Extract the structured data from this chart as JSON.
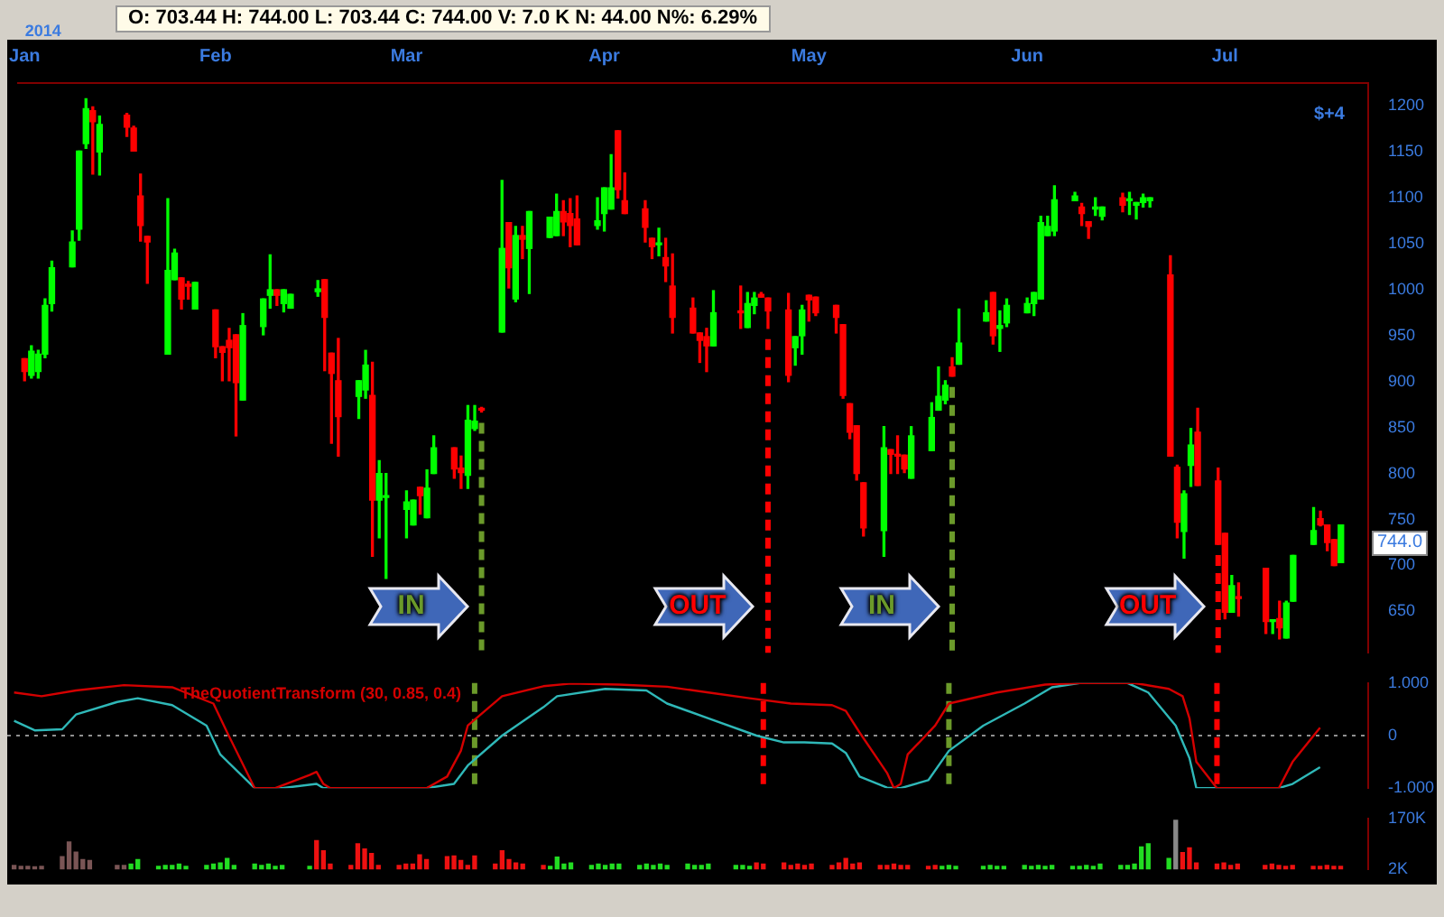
{
  "chart_data": [
    {
      "type": "candlestick",
      "title": "O: 703.44  H: 744.00  L: 703.44  C: 744.00  V: 7.0 K  N: 44.00  N%: 6.29%",
      "x": [
        "2014-01-06",
        "2014-01-07",
        "2014-01-08",
        "2014-01-09",
        "2014-01-10",
        "2014-01-13",
        "2014-01-14",
        "2014-01-15",
        "2014-01-16",
        "2014-01-17",
        "2014-01-21",
        "2014-01-22",
        "2014-01-23",
        "2014-01-24",
        "2014-01-27",
        "2014-01-28",
        "2014-01-29",
        "2014-01-30",
        "2014-01-31",
        "2014-02-03",
        "2014-02-04",
        "2014-02-05",
        "2014-02-06",
        "2014-02-07",
        "2014-02-10",
        "2014-02-11",
        "2014-02-12",
        "2014-02-13",
        "2014-02-14",
        "2014-02-18",
        "2014-02-19",
        "2014-02-20",
        "2014-02-21",
        "2014-02-24",
        "2014-02-25",
        "2014-02-26",
        "2014-02-27",
        "2014-02-28",
        "2014-03-03",
        "2014-03-04",
        "2014-03-05",
        "2014-03-06",
        "2014-03-07",
        "2014-03-10",
        "2014-03-11",
        "2014-03-12",
        "2014-03-13",
        "2014-03-14",
        "2014-03-17",
        "2014-03-18",
        "2014-03-19",
        "2014-03-20",
        "2014-03-21",
        "2014-03-24",
        "2014-03-25",
        "2014-03-26",
        "2014-03-27",
        "2014-03-28",
        "2014-03-31",
        "2014-04-01",
        "2014-04-02",
        "2014-04-03",
        "2014-04-04",
        "2014-04-07",
        "2014-04-08",
        "2014-04-09",
        "2014-04-10",
        "2014-04-11",
        "2014-04-14",
        "2014-04-15",
        "2014-04-16",
        "2014-04-17",
        "2014-04-21",
        "2014-04-22",
        "2014-04-23",
        "2014-04-24",
        "2014-04-25",
        "2014-04-28",
        "2014-04-29",
        "2014-04-30",
        "2014-05-01",
        "2014-05-02",
        "2014-05-05",
        "2014-05-06",
        "2014-05-07",
        "2014-05-08",
        "2014-05-09",
        "2014-05-12",
        "2014-05-13",
        "2014-05-14",
        "2014-05-15",
        "2014-05-16",
        "2014-05-19",
        "2014-05-20",
        "2014-05-21",
        "2014-05-22",
        "2014-05-23",
        "2014-05-27",
        "2014-05-28",
        "2014-05-29",
        "2014-05-30",
        "2014-06-02",
        "2014-06-03",
        "2014-06-04",
        "2014-06-05",
        "2014-06-06",
        "2014-06-09",
        "2014-06-10",
        "2014-06-11",
        "2014-06-12",
        "2014-06-13",
        "2014-06-16",
        "2014-06-17",
        "2014-06-18",
        "2014-06-19",
        "2014-06-20",
        "2014-06-23",
        "2014-06-24",
        "2014-06-25",
        "2014-06-26",
        "2014-06-27",
        "2014-06-30",
        "2014-07-01",
        "2014-07-02",
        "2014-07-03",
        "2014-07-07",
        "2014-07-08",
        "2014-07-09",
        "2014-07-10",
        "2014-07-11",
        "2014-07-14",
        "2014-07-15",
        "2014-07-16",
        "2014-07-17",
        "2014-07-18"
      ],
      "ohlc": [
        [
          925,
          925,
          901,
          911
        ],
        [
          907,
          939,
          904,
          933
        ],
        [
          911,
          934,
          904,
          930
        ],
        [
          930,
          990,
          926,
          983
        ],
        [
          985,
          1031,
          977,
          1024
        ],
        [
          1025,
          1064,
          1025,
          1052
        ],
        [
          1066,
          1151,
          1054,
          1151
        ],
        [
          1159,
          1208,
          1154,
          1197
        ],
        [
          1195,
          1199,
          1126,
          1183
        ],
        [
          1150,
          1189,
          1125,
          1180
        ],
        [
          1190,
          1192,
          1167,
          1177
        ],
        [
          1176,
          1178,
          1151,
          1151
        ],
        [
          1102,
          1126,
          1053,
          1070
        ],
        [
          1058,
          1058,
          1007,
          1052
        ],
        [
          930,
          1099,
          930,
          1021
        ],
        [
          1011,
          1044,
          1011,
          1040
        ],
        [
          1013,
          1013,
          979,
          990
        ],
        [
          1006,
          1009,
          990,
          1004
        ],
        [
          979,
          1008,
          979,
          1008
        ],
        [
          978,
          978,
          926,
          938
        ],
        [
          938,
          938,
          901,
          932
        ],
        [
          945,
          958,
          901,
          937
        ],
        [
          951,
          951,
          841,
          899
        ],
        [
          880,
          974,
          880,
          961
        ],
        [
          960,
          990,
          951,
          990
        ],
        [
          994,
          1038,
          980,
          1000
        ],
        [
          1000,
          1000,
          983,
          994
        ],
        [
          985,
          1000,
          976,
          1000
        ],
        [
          980,
          995,
          980,
          995
        ],
        [
          998,
          1010,
          993,
          1001
        ],
        [
          1011,
          1011,
          912,
          970
        ],
        [
          931,
          931,
          833,
          909
        ],
        [
          901,
          947,
          819,
          862
        ],
        [
          884,
          901,
          860,
          901
        ],
        [
          891,
          934,
          882,
          918
        ],
        [
          885,
          921,
          710,
          771
        ],
        [
          771,
          814,
          730,
          800
        ],
        [
          774,
          800,
          686,
          775
        ],
        [
          761,
          781,
          730,
          769
        ],
        [
          744,
          771,
          744,
          771
        ],
        [
          785,
          785,
          756,
          776
        ],
        [
          752,
          804,
          752,
          784
        ],
        [
          800,
          841,
          800,
          828
        ],
        [
          828,
          828,
          795,
          805
        ],
        [
          806,
          819,
          784,
          801
        ],
        [
          798,
          874,
          784,
          858
        ],
        [
          849,
          874,
          847,
          857
        ],
        [
          870,
          872,
          867,
          869
        ],
        [
          954,
          1119,
          954,
          1045
        ],
        [
          1073,
          1073,
          1002,
          1024
        ],
        [
          990,
          1069,
          987,
          1059
        ],
        [
          1059,
          1069,
          1034,
          1055
        ],
        [
          1045,
          1085,
          996,
          1085
        ],
        [
          1057,
          1079,
          1057,
          1079
        ],
        [
          1059,
          1104,
          1059,
          1085
        ],
        [
          1085,
          1097,
          1059,
          1074
        ],
        [
          1083,
          1099,
          1047,
          1070
        ],
        [
          1077,
          1102,
          1049,
          1049
        ],
        [
          1070,
          1100,
          1066,
          1075
        ],
        [
          1083,
          1111,
          1064,
          1111
        ],
        [
          1088,
          1147,
          1088,
          1111
        ],
        [
          1173,
          1173,
          1100,
          1109
        ],
        [
          1097,
          1127,
          1083,
          1083
        ],
        [
          1088,
          1097,
          1052,
          1068
        ],
        [
          1056,
          1056,
          1034,
          1047
        ],
        [
          1049,
          1067,
          1037,
          1050
        ],
        [
          1035,
          1056,
          1009,
          1026
        ],
        [
          1004,
          1039,
          953,
          970
        ],
        [
          980,
          991,
          953,
          953
        ],
        [
          953,
          953,
          921,
          945
        ],
        [
          949,
          958,
          911,
          939
        ],
        [
          939,
          999,
          939,
          975
        ],
        [
          976,
          1004,
          958,
          975
        ],
        [
          959,
          997,
          959,
          985
        ],
        [
          983,
          997,
          974,
          991
        ],
        [
          995,
          997,
          992,
          992
        ],
        [
          991,
          991,
          958,
          977
        ],
        [
          978,
          996,
          900,
          907
        ],
        [
          937,
          949,
          918,
          949
        ],
        [
          950,
          983,
          930,
          978
        ],
        [
          994,
          994,
          966,
          989
        ],
        [
          992,
          992,
          972,
          975
        ],
        [
          983,
          983,
          953,
          970
        ],
        [
          962,
          962,
          882,
          885
        ],
        [
          876,
          876,
          838,
          845
        ],
        [
          852,
          852,
          793,
          800
        ],
        [
          790,
          790,
          732,
          741
        ],
        [
          738,
          851,
          710,
          828
        ],
        [
          826,
          826,
          800,
          821
        ],
        [
          820,
          841,
          800,
          819
        ],
        [
          820,
          820,
          801,
          805
        ],
        [
          795,
          851,
          795,
          841
        ],
        [
          825,
          877,
          825,
          861
        ],
        [
          869,
          916,
          869,
          884
        ],
        [
          880,
          901,
          876,
          896
        ],
        [
          916,
          926,
          906,
          906
        ],
        [
          919,
          979,
          919,
          942
        ],
        [
          966,
          988,
          966,
          975
        ],
        [
          997,
          997,
          941,
          950
        ],
        [
          958,
          977,
          933,
          961
        ],
        [
          964,
          990,
          960,
          983
        ],
        [
          975,
          991,
          975,
          985
        ],
        [
          985,
          997,
          972,
          997
        ],
        [
          990,
          1080,
          990,
          1073
        ],
        [
          1059,
          1080,
          1059,
          1069
        ],
        [
          1064,
          1113,
          1059,
          1098
        ],
        [
          1097,
          1106,
          1097,
          1102
        ],
        [
          1090,
          1094,
          1070,
          1083
        ],
        [
          1074,
          1074,
          1056,
          1069
        ],
        [
          1088,
          1100,
          1081,
          1089
        ],
        [
          1080,
          1090,
          1076,
          1090
        ],
        [
          1100,
          1105,
          1085,
          1092
        ],
        [
          1097,
          1106,
          1082,
          1098
        ],
        [
          1092,
          1095,
          1077,
          1095
        ],
        [
          1095,
          1104,
          1090,
          1100
        ],
        [
          1097,
          1100,
          1090,
          1100
        ],
        [
          1016,
          1037,
          819,
          819
        ],
        [
          807,
          809,
          730,
          747
        ],
        [
          737,
          781,
          708,
          778
        ],
        [
          809,
          849,
          786,
          831
        ],
        [
          845,
          871,
          787,
          787
        ],
        [
          792,
          806,
          723,
          723
        ],
        [
          735,
          735,
          642,
          649
        ],
        [
          649,
          689,
          649,
          678
        ],
        [
          666,
          681,
          645,
          664
        ],
        [
          697,
          697,
          626,
          639
        ],
        [
          639,
          640,
          626,
          640
        ],
        [
          642,
          661,
          620,
          632
        ],
        [
          621,
          661,
          621,
          659
        ],
        [
          661,
          711,
          661,
          711
        ],
        [
          723,
          763,
          723,
          738
        ],
        [
          751,
          759,
          743,
          744
        ],
        [
          744,
          744,
          716,
          725
        ],
        [
          728,
          728,
          700,
          700
        ],
        [
          703,
          744,
          703,
          744
        ]
      ],
      "colors": [
        "#ff0000",
        "#00ff00",
        "#00ff00",
        "#00ff00",
        "#00ff00",
        "#00ff00",
        "#00ff00",
        "#00ff00",
        "#ff0000",
        "#00ff00",
        "#ff0000",
        "#ff0000",
        "#ff0000",
        "#ff0000",
        "#00ff00",
        "#00ff00",
        "#ff0000",
        "#ff0000",
        "#00ff00",
        "#ff0000",
        "#ff0000",
        "#ff0000",
        "#ff0000",
        "#00ff00",
        "#00ff00",
        "#00ff00",
        "#ff0000",
        "#00ff00",
        "#00ff00",
        "#00ff00",
        "#ff0000",
        "#ff0000",
        "#ff0000",
        "#00ff00",
        "#00ff00",
        "#ff0000",
        "#00ff00",
        "#00ff00",
        "#00ff00",
        "#00ff00",
        "#ff0000",
        "#00ff00",
        "#00ff00",
        "#ff0000",
        "#ff0000",
        "#00ff00",
        "#00ff00",
        "#ff0000",
        "#00ff00",
        "#ff0000",
        "#00ff00",
        "#ff0000",
        "#00ff00",
        "#00ff00",
        "#00ff00",
        "#ff0000",
        "#ff0000",
        "#ff0000",
        "#00ff00",
        "#00ff00",
        "#00ff00",
        "#ff0000",
        "#ff0000",
        "#ff0000",
        "#ff0000",
        "#00ff00",
        "#ff0000",
        "#ff0000",
        "#ff0000",
        "#ff0000",
        "#ff0000",
        "#00ff00",
        "#ff0000",
        "#00ff00",
        "#00ff00",
        "#ff0000",
        "#ff0000",
        "#ff0000",
        "#00ff00",
        "#00ff00",
        "#ff0000",
        "#ff0000",
        "#ff0000",
        "#ff0000",
        "#ff0000",
        "#ff0000",
        "#ff0000",
        "#00ff00",
        "#ff0000",
        "#ff0000",
        "#ff0000",
        "#00ff00",
        "#00ff00",
        "#00ff00",
        "#00ff00",
        "#ff0000",
        "#00ff00",
        "#00ff00",
        "#ff0000",
        "#00ff00",
        "#00ff00",
        "#00ff00",
        "#00ff00",
        "#00ff00",
        "#00ff00",
        "#00ff00",
        "#00ff00",
        "#ff0000",
        "#ff0000",
        "#00ff00",
        "#00ff00",
        "#ff0000",
        "#00ff00",
        "#00ff00",
        "#00ff00",
        "#00ff00",
        "#ff0000",
        "#ff0000",
        "#00ff00",
        "#00ff00",
        "#ff0000",
        "#ff0000",
        "#ff0000",
        "#00ff00",
        "#ff0000",
        "#ff0000",
        "#00ff00",
        "#ff0000",
        "#00ff00",
        "#00ff00",
        "#00ff00",
        "#ff0000",
        "#ff0000",
        "#ff0000",
        "#00ff00"
      ],
      "xlim": [
        "2014-01-05",
        "2014-07-22"
      ],
      "xticks": [
        {
          "value": "2014-01-06",
          "label": "Jan"
        },
        {
          "value": "2014-02-03",
          "label": "Feb"
        },
        {
          "value": "2014-03-03",
          "label": "Mar"
        },
        {
          "value": "2014-04-01",
          "label": "Apr"
        },
        {
          "value": "2014-05-01",
          "label": "May"
        },
        {
          "value": "2014-06-02",
          "label": "Jun"
        },
        {
          "value": "2014-07-01",
          "label": "Jul"
        }
      ],
      "ylim": [
        605,
        1225
      ],
      "yticks": [
        650,
        700,
        750,
        800,
        850,
        900,
        950,
        1000,
        1050,
        1100,
        1150,
        1200
      ],
      "ref_lines": [
        {
          "axis": "x",
          "value": "2014-03-14",
          "color": "#6b9a2a",
          "line_style": "dashed",
          "label": "IN"
        },
        {
          "axis": "x",
          "value": "2014-04-25",
          "color": "#ff0000",
          "line_style": "dashed",
          "label": "OUT"
        },
        {
          "axis": "x",
          "value": "2014-05-22",
          "color": "#6b9a2a",
          "line_style": "dashed",
          "label": "IN"
        },
        {
          "axis": "x",
          "value": "2014-06-30",
          "color": "#ff0000",
          "line_style": "dashed",
          "label": "OUT"
        }
      ],
      "annotations": [
        "2014",
        "$+4",
        "744.0"
      ]
    },
    {
      "type": "line",
      "title": "TheQuotientTransform (30, 0.85, 0.4)",
      "tick_labels": "y",
      "xlim": [
        "2014-01-05",
        "2014-07-22"
      ],
      "ylim": [
        -1,
        1
      ],
      "yticks": [
        {
          "value": 1,
          "label": "1.000"
        },
        0,
        {
          "value": -1,
          "label": "-1.000"
        }
      ],
      "series": [
        {
          "color": "#d40000",
          "x": [
            "2014-01-06",
            "2014-01-10",
            "2014-01-15",
            "2014-01-22",
            "2014-01-29",
            "2014-02-04",
            "2014-02-06",
            "2014-02-10",
            "2014-02-13",
            "2014-02-18",
            "2014-02-19",
            "2014-02-20",
            "2014-02-21",
            "2014-03-07",
            "2014-03-10",
            "2014-03-12",
            "2014-03-13",
            "2014-03-18",
            "2014-03-24",
            "2014-03-28",
            "2014-04-04",
            "2014-04-11",
            "2014-04-17",
            "2014-04-23",
            "2014-04-29",
            "2014-05-05",
            "2014-05-07",
            "2014-05-09",
            "2014-05-13",
            "2014-05-14",
            "2014-05-15",
            "2014-05-16",
            "2014-05-20",
            "2014-05-22",
            "2014-05-29",
            "2014-06-05",
            "2014-06-10",
            "2014-06-18",
            "2014-06-23",
            "2014-06-25",
            "2014-06-26",
            "2014-06-27",
            "2014-06-30",
            "2014-07-09",
            "2014-07-11",
            "2014-07-15"
          ],
          "values": [
            0.82,
            0.75,
            0.86,
            0.96,
            0.92,
            0.61,
            0.06,
            -1,
            -1,
            -0.75,
            -0.69,
            -0.92,
            -1,
            -1,
            -0.78,
            -0.29,
            0.19,
            0.75,
            0.94,
            0.99,
            0.97,
            0.93,
            0.82,
            0.71,
            0.61,
            0.58,
            0.47,
            0.06,
            -0.71,
            -1,
            -0.92,
            -0.36,
            0.19,
            0.61,
            0.82,
            0.97,
            1,
            1,
            0.89,
            0.75,
            0.33,
            -0.5,
            -1,
            -1,
            -0.5,
            0.15
          ]
        },
        {
          "color": "#2fb8b8",
          "x": [
            "2014-01-06",
            "2014-01-09",
            "2014-01-13",
            "2014-01-15",
            "2014-01-21",
            "2014-01-24",
            "2014-01-29",
            "2014-02-03",
            "2014-02-05",
            "2014-02-10",
            "2014-02-14",
            "2014-02-19",
            "2014-02-20",
            "2014-03-07",
            "2014-03-11",
            "2014-03-13",
            "2014-03-18",
            "2014-03-24",
            "2014-03-26",
            "2014-04-02",
            "2014-04-08",
            "2014-04-11",
            "2014-04-17",
            "2014-04-24",
            "2014-04-28",
            "2014-05-01",
            "2014-05-05",
            "2014-05-07",
            "2014-05-09",
            "2014-05-13",
            "2014-05-15",
            "2014-05-19",
            "2014-05-22",
            "2014-05-27",
            "2014-06-02",
            "2014-06-06",
            "2014-06-10",
            "2014-06-17",
            "2014-06-20",
            "2014-06-24",
            "2014-06-26",
            "2014-06-27",
            "2014-07-09",
            "2014-07-11",
            "2014-07-15"
          ],
          "values": [
            0.28,
            0.1,
            0.12,
            0.4,
            0.64,
            0.71,
            0.58,
            0.19,
            -0.36,
            -1,
            -1,
            -0.92,
            -1,
            -1,
            -0.92,
            -0.57,
            0,
            0.54,
            0.75,
            0.89,
            0.86,
            0.61,
            0.33,
            0,
            -0.13,
            -0.13,
            -0.15,
            -0.33,
            -0.78,
            -0.99,
            -1,
            -0.85,
            -0.29,
            0.19,
            0.61,
            0.92,
            1,
            1,
            0.82,
            0.19,
            -0.43,
            -1,
            -1,
            -0.92,
            -0.6
          ]
        }
      ],
      "ref_lines": [
        {
          "axis": "y",
          "value": 0,
          "color": "#909090",
          "line_style": "dotted"
        },
        {
          "axis": "x",
          "value": "2014-03-14",
          "color": "#6b9a2a",
          "line_style": "dashed"
        },
        {
          "axis": "x",
          "value": "2014-04-25",
          "color": "#ff0000",
          "line_style": "dashed"
        },
        {
          "axis": "x",
          "value": "2014-05-22",
          "color": "#6b9a2a",
          "line_style": "dashed"
        },
        {
          "axis": "x",
          "value": "2014-06-30",
          "color": "#ff0000",
          "line_style": "dashed"
        }
      ]
    },
    {
      "type": "bar",
      "tick_labels": "y",
      "x": [
        "2014-01-06",
        "2014-01-07",
        "2014-01-08",
        "2014-01-09",
        "2014-01-10",
        "2014-01-13",
        "2014-01-14",
        "2014-01-15",
        "2014-01-16",
        "2014-01-17",
        "2014-01-21",
        "2014-01-22",
        "2014-01-23",
        "2014-01-24",
        "2014-01-27",
        "2014-01-28",
        "2014-01-29",
        "2014-01-30",
        "2014-01-31",
        "2014-02-03",
        "2014-02-04",
        "2014-02-05",
        "2014-02-06",
        "2014-02-07",
        "2014-02-10",
        "2014-02-11",
        "2014-02-12",
        "2014-02-13",
        "2014-02-14",
        "2014-02-18",
        "2014-02-19",
        "2014-02-20",
        "2014-02-21",
        "2014-02-24",
        "2014-02-25",
        "2014-02-26",
        "2014-02-27",
        "2014-02-28",
        "2014-03-03",
        "2014-03-04",
        "2014-03-05",
        "2014-03-06",
        "2014-03-07",
        "2014-03-10",
        "2014-03-11",
        "2014-03-12",
        "2014-03-13",
        "2014-03-14",
        "2014-03-17",
        "2014-03-18",
        "2014-03-19",
        "2014-03-20",
        "2014-03-21",
        "2014-03-24",
        "2014-03-25",
        "2014-03-26",
        "2014-03-27",
        "2014-03-28",
        "2014-03-31",
        "2014-04-01",
        "2014-04-02",
        "2014-04-03",
        "2014-04-04",
        "2014-04-07",
        "2014-04-08",
        "2014-04-09",
        "2014-04-10",
        "2014-04-11",
        "2014-04-14",
        "2014-04-15",
        "2014-04-16",
        "2014-04-17",
        "2014-04-21",
        "2014-04-22",
        "2014-04-23",
        "2014-04-24",
        "2014-04-25",
        "2014-04-28",
        "2014-04-29",
        "2014-04-30",
        "2014-05-01",
        "2014-05-02",
        "2014-05-05",
        "2014-05-06",
        "2014-05-07",
        "2014-05-08",
        "2014-05-09",
        "2014-05-12",
        "2014-05-13",
        "2014-05-14",
        "2014-05-15",
        "2014-05-16",
        "2014-05-19",
        "2014-05-20",
        "2014-05-21",
        "2014-05-22",
        "2014-05-23",
        "2014-05-27",
        "2014-05-28",
        "2014-05-29",
        "2014-05-30",
        "2014-06-02",
        "2014-06-03",
        "2014-06-04",
        "2014-06-05",
        "2014-06-06",
        "2014-06-09",
        "2014-06-10",
        "2014-06-11",
        "2014-06-12",
        "2014-06-13",
        "2014-06-16",
        "2014-06-17",
        "2014-06-18",
        "2014-06-19",
        "2014-06-20",
        "2014-06-23",
        "2014-06-24",
        "2014-06-25",
        "2014-06-26",
        "2014-06-27",
        "2014-06-30",
        "2014-07-01",
        "2014-07-02",
        "2014-07-03",
        "2014-07-07",
        "2014-07-08",
        "2014-07-09",
        "2014-07-10",
        "2014-07-11",
        "2014-07-14",
        "2014-07-15",
        "2014-07-16",
        "2014-07-17",
        "2014-07-18"
      ],
      "xlim": [
        "2014-01-05",
        "2014-07-22"
      ],
      "values": [
        15,
        12,
        12,
        10,
        12,
        44,
        92,
        59,
        34,
        31,
        15,
        15,
        19,
        34,
        12,
        15,
        15,
        19,
        12,
        15,
        19,
        23,
        38,
        15,
        19,
        15,
        19,
        12,
        15,
        12,
        97,
        63,
        19,
        15,
        86,
        69,
        54,
        15,
        15,
        19,
        19,
        50,
        34,
        44,
        46,
        31,
        15,
        46,
        19,
        63,
        34,
        23,
        19,
        15,
        12,
        42,
        19,
        23,
        15,
        19,
        15,
        19,
        19,
        15,
        19,
        15,
        19,
        15,
        19,
        15,
        15,
        19,
        15,
        15,
        12,
        23,
        19,
        23,
        15,
        19,
        15,
        19,
        15,
        23,
        38,
        19,
        23,
        15,
        15,
        19,
        15,
        15,
        12,
        15,
        12,
        15,
        12,
        12,
        15,
        12,
        12,
        15,
        12,
        15,
        12,
        15,
        12,
        12,
        15,
        12,
        19,
        15,
        15,
        19,
        76,
        86,
        38,
        164,
        57,
        73,
        23,
        19,
        23,
        15,
        19,
        15,
        19,
        15,
        12,
        15,
        12,
        12,
        15,
        12,
        12
      ],
      "colors": [
        "#7a5555",
        "#7a5555",
        "#7a5555",
        "#7a5555",
        "#7a5555",
        "#7a5555",
        "#7a5555",
        "#7a5555",
        "#7a5555",
        "#7a5555",
        "#7a5555",
        "#7a5555",
        "#22dd22",
        "#22dd22",
        "#22dd22",
        "#22dd22",
        "#22dd22",
        "#22dd22",
        "#22dd22",
        "#22dd22",
        "#22dd22",
        "#22dd22",
        "#22dd22",
        "#22dd22",
        "#22dd22",
        "#22dd22",
        "#22dd22",
        "#22dd22",
        "#22dd22",
        "#22dd22",
        "#ee1111",
        "#ee1111",
        "#ee1111",
        "#ee1111",
        "#ee1111",
        "#ee1111",
        "#ee1111",
        "#ee1111",
        "#ee1111",
        "#ee1111",
        "#ee1111",
        "#ee1111",
        "#ee1111",
        "#ee1111",
        "#ee1111",
        "#ee1111",
        "#ee1111",
        "#ee1111",
        "#ee1111",
        "#ee1111",
        "#ee1111",
        "#ee1111",
        "#ee1111",
        "#ee1111",
        "#22dd22",
        "#22dd22",
        "#22dd22",
        "#22dd22",
        "#22dd22",
        "#22dd22",
        "#22dd22",
        "#22dd22",
        "#22dd22",
        "#22dd22",
        "#22dd22",
        "#22dd22",
        "#22dd22",
        "#22dd22",
        "#22dd22",
        "#22dd22",
        "#22dd22",
        "#22dd22",
        "#22dd22",
        "#22dd22",
        "#22dd22",
        "#ee1111",
        "#ee1111",
        "#ee1111",
        "#ee1111",
        "#ee1111",
        "#ee1111",
        "#ee1111",
        "#ee1111",
        "#ee1111",
        "#ee1111",
        "#ee1111",
        "#ee1111",
        "#ee1111",
        "#ee1111",
        "#ee1111",
        "#ee1111",
        "#ee1111",
        "#ee1111",
        "#ee1111",
        "#22dd22",
        "#22dd22",
        "#22dd22",
        "#22dd22",
        "#22dd22",
        "#22dd22",
        "#22dd22",
        "#22dd22",
        "#22dd22",
        "#22dd22",
        "#22dd22",
        "#22dd22",
        "#22dd22",
        "#22dd22",
        "#22dd22",
        "#22dd22",
        "#22dd22",
        "#22dd22",
        "#22dd22",
        "#22dd22",
        "#22dd22",
        "#22dd22",
        "#22dd22",
        "#888888",
        "#ee1111",
        "#ee1111",
        "#ee1111",
        "#ee1111",
        "#ee1111",
        "#ee1111",
        "#ee1111",
        "#ee1111",
        "#ee1111",
        "#ee1111",
        "#ee1111",
        "#ee1111",
        "#ee1111",
        "#ee1111",
        "#ee1111",
        "#ee1111",
        "#ee1111"
      ],
      "ylim": [
        2,
        170
      ],
      "yticks": [
        {
          "value": 170,
          "label": "170K"
        },
        {
          "value": 2,
          "label": "2K"
        }
      ]
    }
  ]
}
